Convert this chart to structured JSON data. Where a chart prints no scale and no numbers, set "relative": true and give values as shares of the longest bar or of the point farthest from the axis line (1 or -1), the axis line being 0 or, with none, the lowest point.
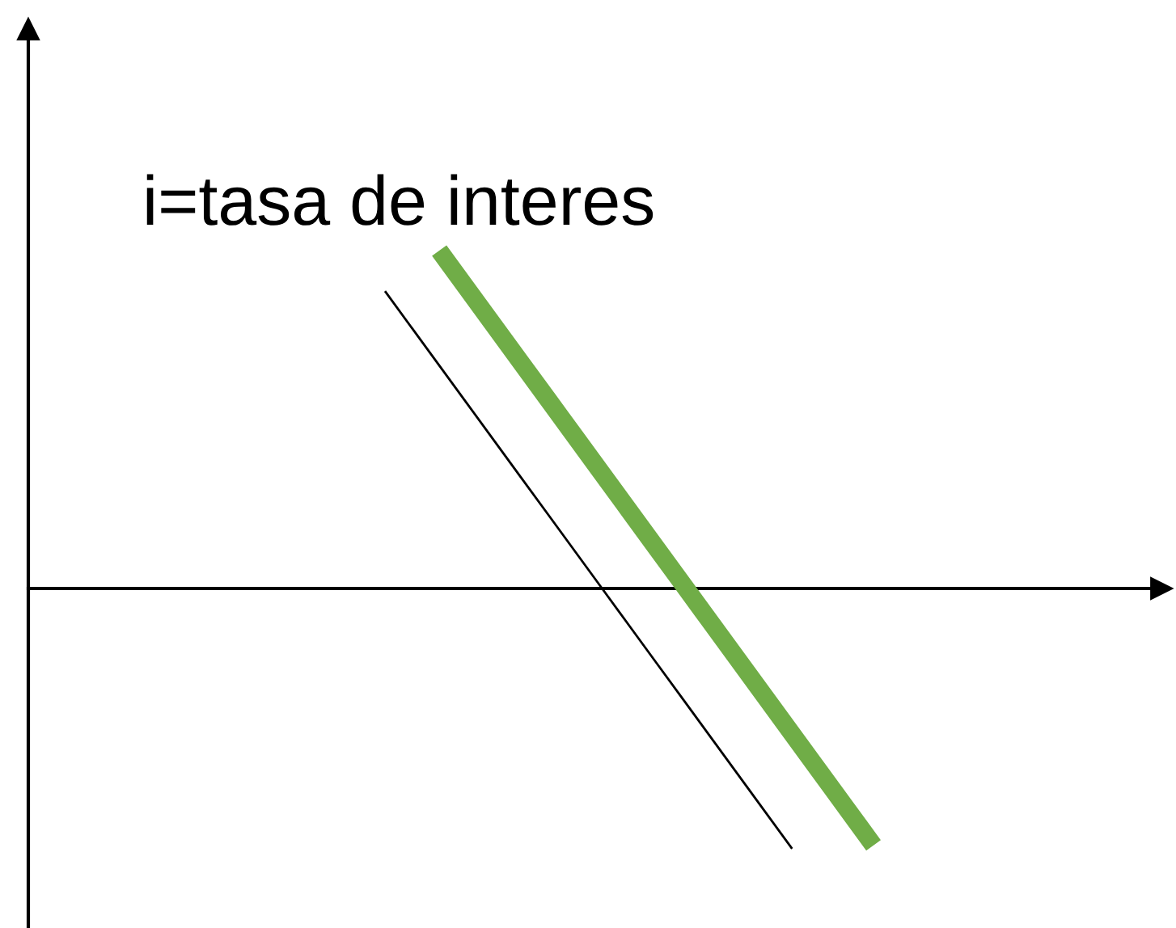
{
  "chart_data": {
    "type": "line",
    "relative": true,
    "tick_labels": false,
    "line_style": "solid",
    "categories": [
      null,
      null,
      null,
      null,
      null,
      null,
      null,
      null,
      null,
      null,
      null,
      null,
      null,
      null,
      null,
      null,
      null,
      null,
      null
    ],
    "series": [
      {
        "color": "#000000",
        "values": [
          0.88,
          0.77,
          0.66,
          0.55,
          0.44,
          0.33,
          0.22,
          0.11,
          0.0,
          -0.11,
          -0.22,
          -0.33,
          -0.44,
          -0.55,
          -0.66,
          -0.77,
          null,
          null,
          null
        ]
      },
      {
        "color": "#70ad47",
        "values": [
          null,
          null,
          1.0,
          0.89,
          0.78,
          0.67,
          0.56,
          0.45,
          0.34,
          0.23,
          0.12,
          0.01,
          -0.1,
          -0.21,
          -0.32,
          -0.43,
          -0.54,
          -0.65,
          -0.76
        ]
      }
    ],
    "annotations": [
      "i=tasa de interes"
    ]
  }
}
